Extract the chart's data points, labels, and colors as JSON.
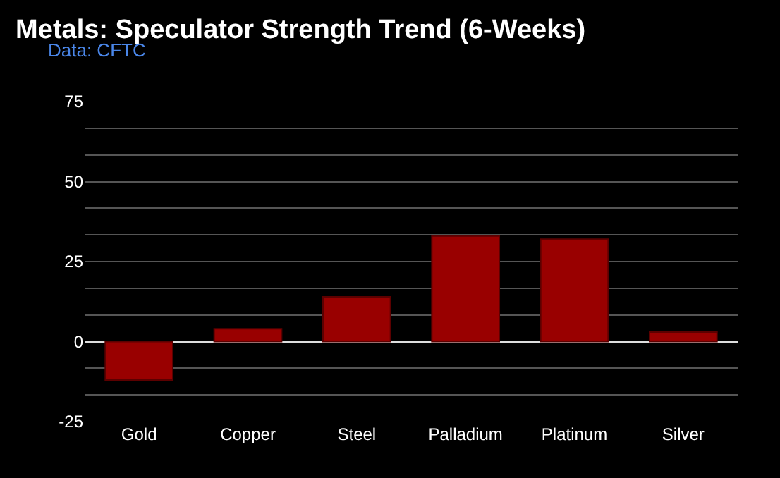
{
  "chart_data": {
    "type": "bar",
    "title": "Metals: Speculator Strength Trend (6-Weeks)",
    "subtitle": "Data: CFTC",
    "categories": [
      "Gold",
      "Copper",
      "Steel",
      "Palladium",
      "Platinum",
      "Silver"
    ],
    "values": [
      -12,
      4,
      14,
      33,
      32,
      3
    ],
    "color": "#990000",
    "ylim": [
      -25,
      75
    ],
    "yticks": [
      -25,
      {
        "value": -16.7,
        "label": null
      },
      {
        "value": -8.3,
        "label": null
      },
      0,
      {
        "value": 8.3,
        "label": null
      },
      {
        "value": 16.7,
        "label": null
      },
      25,
      {
        "value": 33.3,
        "label": null
      },
      {
        "value": 41.7,
        "label": null
      },
      50,
      {
        "value": 58.3,
        "label": null
      },
      {
        "value": 66.7,
        "label": null
      },
      75
    ],
    "grid": "y",
    "legend": false
  }
}
